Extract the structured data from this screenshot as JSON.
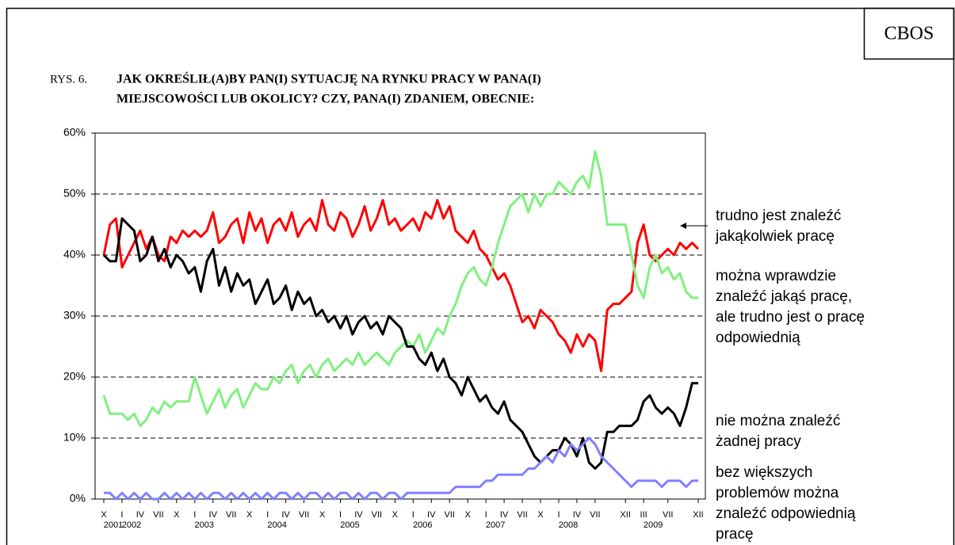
{
  "chart_data": {
    "type": "line",
    "badge": "CBOS",
    "label": "RYS. 6.",
    "title": [
      "JAK OKREŚLIŁ(A)BY PAN(I) SYTUACJĘ NA RYNKU PRACY W PANA(I)",
      "MIEJSCOWOŚCI LUB OKOLICY? CZY, PANA(I) ZDANIEM, OBECNIE:"
    ],
    "categories": [
      "X",
      null,
      null,
      "I",
      null,
      null,
      "IV",
      null,
      null,
      "VII",
      null,
      null,
      "X",
      null,
      null,
      "I",
      null,
      null,
      "IV",
      null,
      null,
      "VII",
      null,
      null,
      "X",
      null,
      null,
      "I",
      null,
      null,
      "IV",
      null,
      null,
      "VII",
      null,
      null,
      "X",
      null,
      null,
      "I",
      null,
      null,
      "IV",
      null,
      null,
      "VII",
      null,
      null,
      "X",
      null,
      null,
      "I",
      null,
      null,
      "IV",
      null,
      null,
      "VII",
      null,
      null,
      "X",
      null,
      null,
      "I",
      null,
      null,
      "IV",
      null,
      null,
      "VII",
      null,
      null,
      "X",
      null,
      null,
      "I",
      null,
      null,
      "IV",
      null,
      null,
      "VII",
      null,
      null,
      null,
      null,
      "XII",
      null,
      null,
      "III",
      null,
      null,
      null,
      "VII",
      null,
      null,
      null,
      null,
      "XII"
    ],
    "x_years": [
      "2001",
      null,
      null,
      "2002",
      null,
      null,
      null,
      null,
      null,
      null,
      null,
      null,
      null,
      null,
      null,
      "2003",
      null,
      null,
      null,
      null,
      null,
      null,
      null,
      null,
      null,
      null,
      null,
      "2004",
      null,
      null,
      null,
      null,
      null,
      null,
      null,
      null,
      null,
      null,
      null,
      "2005",
      null,
      null,
      null,
      null,
      null,
      null,
      null,
      null,
      null,
      null,
      null,
      "2006",
      null,
      null,
      null,
      null,
      null,
      null,
      null,
      null,
      null,
      null,
      null,
      "2007",
      null,
      null,
      null,
      null,
      null,
      null,
      null,
      null,
      null,
      null,
      null,
      "2008",
      null,
      null,
      null,
      null,
      null,
      null,
      null,
      null,
      null,
      null,
      null,
      null,
      null,
      "2009",
      null,
      null,
      null,
      null,
      null,
      null,
      null,
      null,
      null
    ],
    "ylim": [
      0,
      60
    ],
    "yticks": [
      {
        "value": 0,
        "label": "0%"
      },
      {
        "value": 10,
        "label": "10%"
      },
      {
        "value": 20,
        "label": "20%"
      },
      {
        "value": 30,
        "label": "30%"
      },
      {
        "value": 40,
        "label": "40%"
      },
      {
        "value": 50,
        "label": "50%"
      },
      {
        "value": 60,
        "label": "60%"
      }
    ],
    "grid": true,
    "series": [
      {
        "name": "trudno jest znaleźć\njakąkolwiek pracę",
        "color": "#ff0000",
        "values": [
          40,
          45,
          46,
          38,
          40,
          42,
          44,
          41,
          43,
          40,
          39,
          43,
          42,
          44,
          43,
          44,
          43,
          44,
          47,
          42,
          43,
          45,
          46,
          42,
          47,
          44,
          46,
          42,
          45,
          46,
          44,
          47,
          43,
          45,
          46,
          44,
          49,
          45,
          44,
          47,
          46,
          43,
          45,
          48,
          44,
          46,
          49,
          45,
          46,
          44,
          45,
          46,
          44,
          47,
          46,
          49,
          46,
          48,
          44,
          43,
          42,
          44,
          41,
          40,
          38,
          36,
          37,
          35,
          32,
          29,
          30,
          28,
          31,
          30,
          29,
          27,
          26,
          24,
          27,
          25,
          27,
          26,
          21,
          31,
          32,
          32,
          33,
          34,
          42,
          45,
          40,
          39,
          40,
          41,
          40,
          42,
          41,
          42,
          41
        ]
      },
      {
        "name": "można wprawdzie\nznaleźć jakąś pracę,\nale trudno jest o pracę\nodpowiednią",
        "color": "#80f080",
        "values": [
          17,
          14,
          14,
          14,
          13,
          14,
          12,
          13,
          15,
          14,
          16,
          15,
          16,
          16,
          16,
          20,
          17,
          14,
          16,
          18,
          15,
          17,
          18,
          15,
          17,
          19,
          18,
          18,
          20,
          19,
          21,
          22,
          19,
          21,
          22,
          20,
          22,
          23,
          21,
          22,
          23,
          22,
          24,
          22,
          23,
          24,
          23,
          22,
          24,
          25,
          26,
          25,
          27,
          24,
          26,
          28,
          27,
          30,
          32,
          35,
          37,
          38,
          36,
          35,
          38,
          42,
          45,
          48,
          49,
          50,
          47,
          50,
          48,
          50,
          50,
          52,
          51,
          50,
          52,
          53,
          51,
          57,
          53,
          45,
          45,
          45,
          45,
          40,
          35,
          33,
          38,
          40,
          37,
          38,
          36,
          37,
          34,
          33,
          33
        ]
      },
      {
        "name": "nie można znaleźć\nżadnej pracy",
        "color": "#000000",
        "values": [
          40,
          39,
          39,
          46,
          45,
          44,
          39,
          40,
          43,
          39,
          41,
          38,
          40,
          39,
          37,
          38,
          34,
          39,
          41,
          35,
          38,
          34,
          37,
          35,
          36,
          32,
          34,
          36,
          32,
          33,
          35,
          31,
          34,
          32,
          33,
          30,
          31,
          29,
          30,
          28,
          30,
          27,
          29,
          30,
          28,
          29,
          27,
          30,
          29,
          28,
          25,
          25,
          23,
          22,
          24,
          21,
          23,
          20,
          19,
          17,
          20,
          18,
          16,
          17,
          15,
          14,
          16,
          13,
          12,
          11,
          9,
          7,
          6,
          7,
          8,
          8,
          10,
          9,
          7,
          10,
          6,
          5,
          6,
          11,
          11,
          12,
          12,
          12,
          13,
          16,
          17,
          15,
          14,
          15,
          14,
          12,
          15,
          19,
          19
        ]
      },
      {
        "name": "bez większych\nproblemów można\nznaleźć odpowiednią\npracę",
        "color": "#8080ff",
        "values": [
          1,
          1,
          0,
          1,
          0,
          1,
          0,
          1,
          0,
          0,
          1,
          0,
          1,
          0,
          1,
          0,
          1,
          0,
          1,
          1,
          0,
          1,
          0,
          1,
          0,
          1,
          0,
          1,
          0,
          1,
          1,
          0,
          1,
          0,
          1,
          1,
          0,
          1,
          0,
          1,
          1,
          0,
          1,
          0,
          1,
          1,
          0,
          1,
          1,
          0,
          1,
          1,
          1,
          1,
          1,
          1,
          1,
          1,
          2,
          2,
          2,
          2,
          2,
          3,
          3,
          4,
          4,
          4,
          4,
          4,
          5,
          5,
          6,
          7,
          6,
          8,
          7,
          9,
          8,
          9,
          10,
          9,
          7,
          6,
          5,
          4,
          3,
          2,
          3,
          3,
          3,
          3,
          2,
          3,
          3,
          3,
          2,
          3,
          3
        ]
      }
    ]
  }
}
